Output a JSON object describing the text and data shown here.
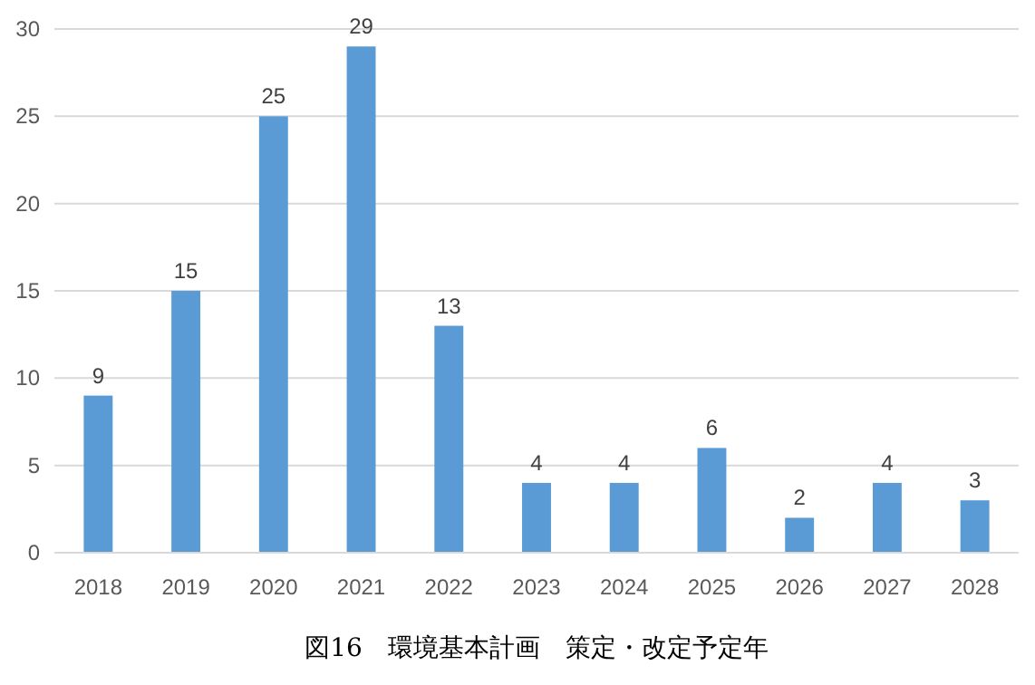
{
  "chart_data": {
    "type": "bar",
    "title": "図16　環境基本計画　策定・改定予定年",
    "categories": [
      "2018",
      "2019",
      "2020",
      "2021",
      "2022",
      "2023",
      "2024",
      "2025",
      "2026",
      "2027",
      "2028"
    ],
    "values": [
      9,
      15,
      25,
      29,
      13,
      4,
      4,
      6,
      2,
      4,
      3
    ],
    "color": "#5b9bd5",
    "ylim": [
      0,
      30
    ],
    "yticks": [
      0,
      5,
      10,
      15,
      20,
      25,
      30
    ],
    "grid": "y",
    "data_labels": true
  }
}
